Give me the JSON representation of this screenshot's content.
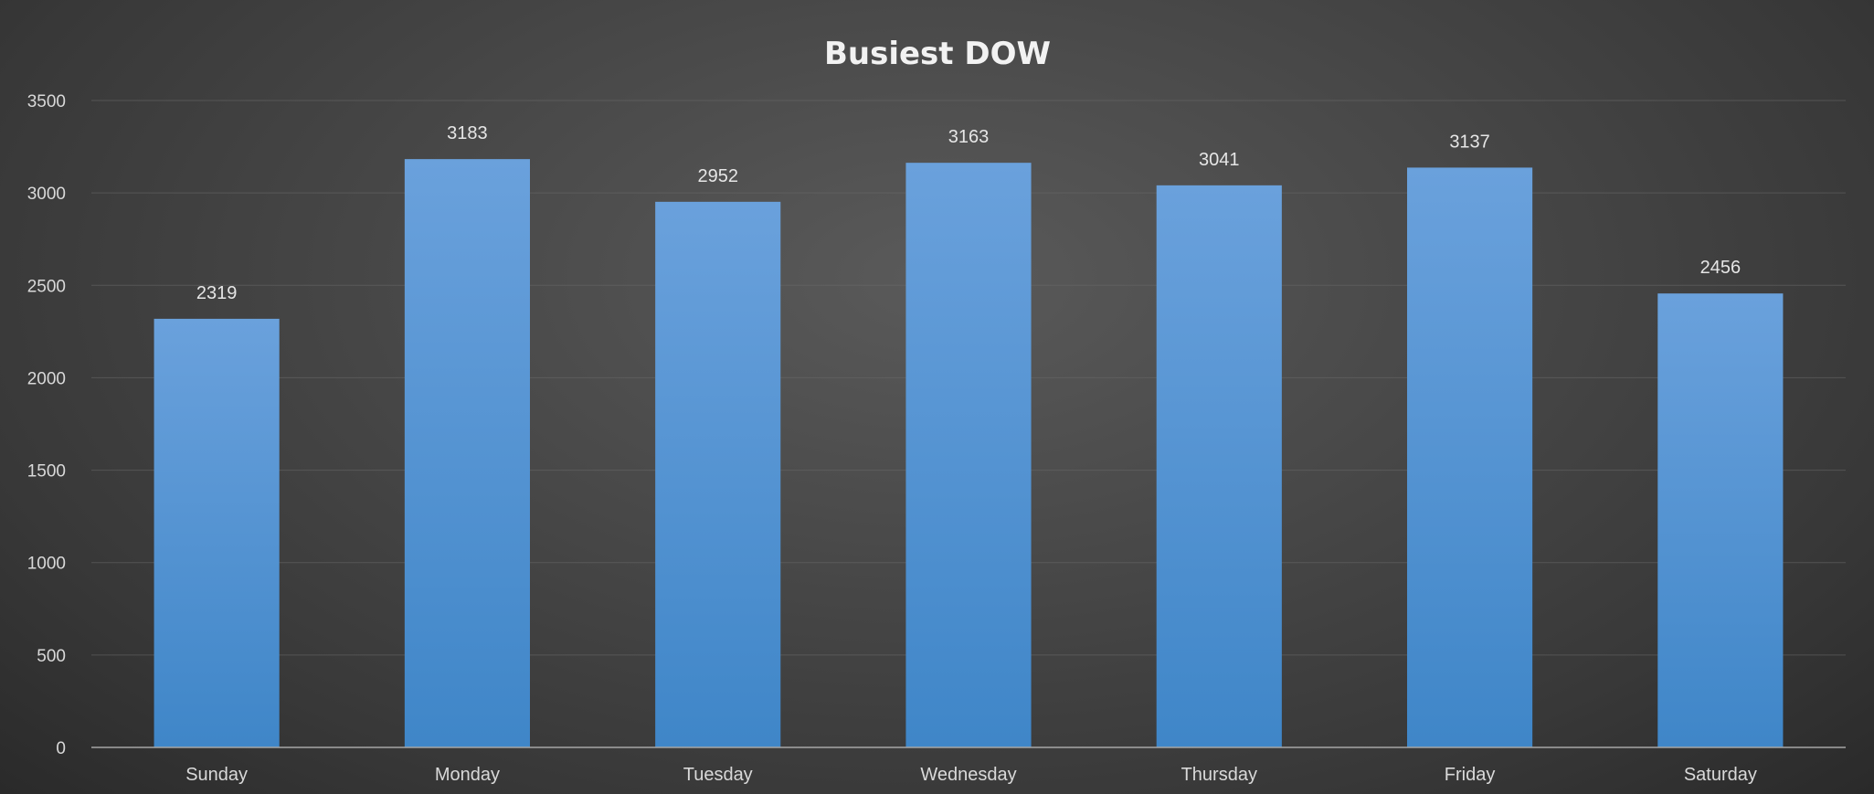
{
  "chart_data": {
    "type": "bar",
    "title": "Busiest DOW",
    "xlabel": "",
    "ylabel": "",
    "categories": [
      "Sunday",
      "Monday",
      "Tuesday",
      "Wednesday",
      "Thursday",
      "Friday",
      "Saturday"
    ],
    "values": [
      2319,
      3183,
      2952,
      3163,
      3041,
      3137,
      2456
    ],
    "ylim": [
      0,
      3500
    ],
    "yticks": [
      0,
      500,
      1000,
      1500,
      2000,
      2500,
      3000,
      3500
    ],
    "grid": true,
    "legend": "none",
    "data_labels": true,
    "colors": {
      "bar_top": "#6aa1dc",
      "bar_bottom": "#3f86c8",
      "background": "#4a4a4a"
    }
  }
}
